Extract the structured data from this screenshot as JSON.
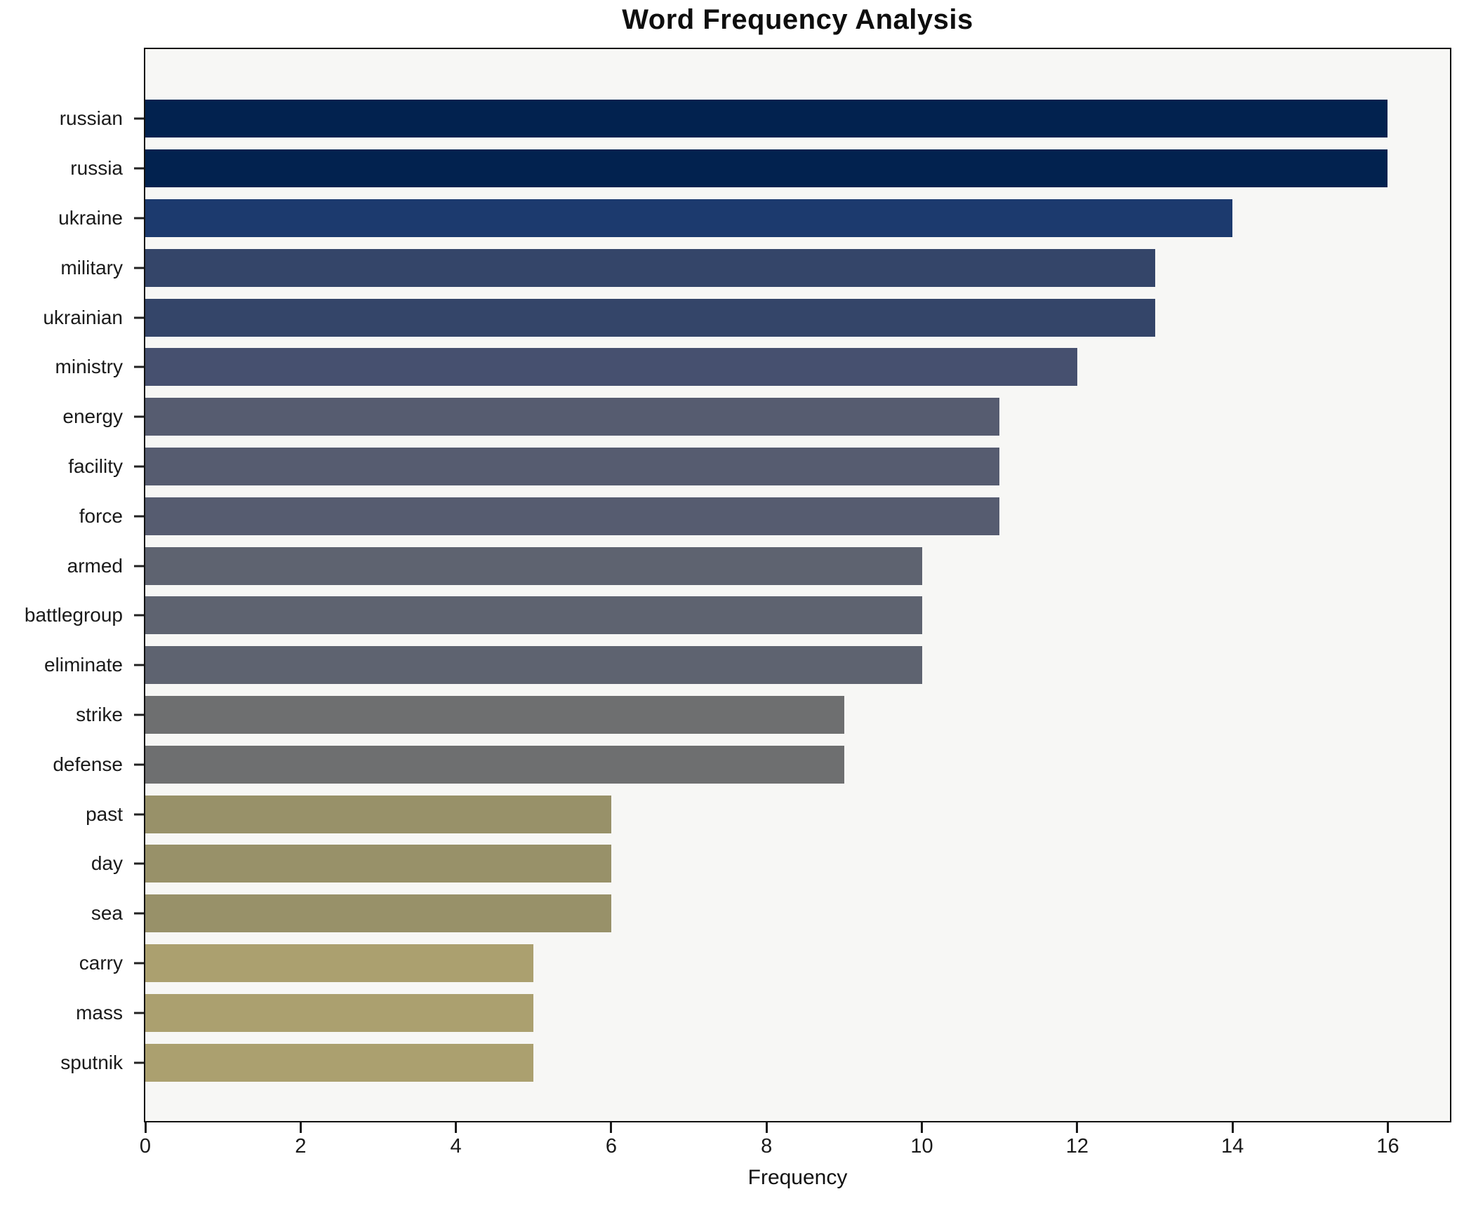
{
  "title": "Word Frequency Analysis",
  "xlabel": "Frequency",
  "chart_data": {
    "type": "bar",
    "orientation": "horizontal",
    "title": "Word Frequency Analysis",
    "xlabel": "Frequency",
    "ylabel": "",
    "categories": [
      "russian",
      "russia",
      "ukraine",
      "military",
      "ukrainian",
      "ministry",
      "energy",
      "facility",
      "force",
      "armed",
      "battlegroup",
      "eliminate",
      "strike",
      "defense",
      "past",
      "day",
      "sea",
      "carry",
      "mass",
      "sputnik"
    ],
    "values": [
      16,
      16,
      14,
      13,
      13,
      12,
      11,
      11,
      11,
      10,
      10,
      10,
      9,
      9,
      6,
      6,
      6,
      5,
      5,
      5
    ],
    "bar_colors": [
      "#02224f",
      "#02224f",
      "#1c3a6e",
      "#344569",
      "#344569",
      "#46506f",
      "#565c70",
      "#565c70",
      "#565c70",
      "#5e6370",
      "#5e6370",
      "#5e6370",
      "#6e6f70",
      "#6e6f70",
      "#989169",
      "#989169",
      "#989169",
      "#aba06f",
      "#aba06f",
      "#aba06f"
    ],
    "xlim": [
      0,
      16.8
    ],
    "xticks": [
      0,
      2,
      4,
      6,
      8,
      10,
      12,
      14,
      16
    ],
    "grid": false,
    "legend": null,
    "plot_background": "#f7f7f5",
    "figure_background": "#ffffff",
    "axis_color": "#111111"
  }
}
